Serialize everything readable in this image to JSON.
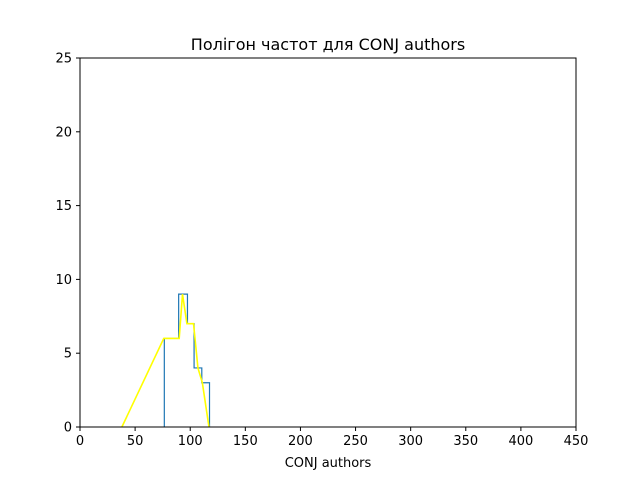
{
  "chart_data": {
    "type": "line",
    "title": "Полігон частот для CONJ authors",
    "xlabel": "CONJ authors",
    "ylabel": "",
    "xlim": [
      0,
      450
    ],
    "ylim": [
      0,
      25
    ],
    "xticks": [
      0,
      50,
      100,
      150,
      200,
      250,
      300,
      350,
      400,
      450
    ],
    "yticks": [
      0,
      5,
      10,
      15,
      20,
      25
    ],
    "grid": false,
    "series": [
      {
        "kind": "step",
        "color": "#1f77b4",
        "x": [
          76.5,
          76.5,
          89.5,
          89.5,
          97.5,
          97.5,
          103.5,
          103.5,
          110.5,
          110.5,
          117.5,
          117.5
        ],
        "y": [
          0,
          6,
          6,
          9,
          9,
          7,
          7,
          4,
          4,
          3,
          3,
          0
        ]
      },
      {
        "kind": "polygon",
        "color": "#ffff00",
        "x": [
          38,
          76,
          90,
          93,
          97,
          103,
          107,
          111,
          117
        ],
        "y": [
          0,
          6,
          6,
          9,
          7,
          7,
          4,
          3,
          0
        ]
      }
    ]
  }
}
